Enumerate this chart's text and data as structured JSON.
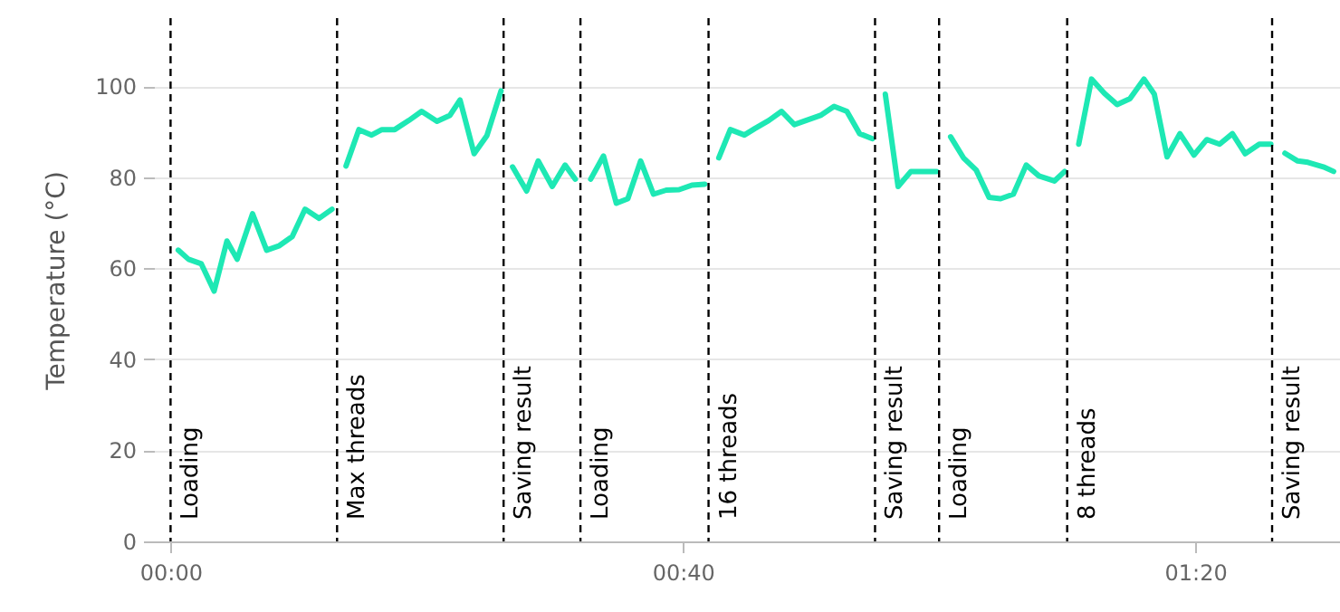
{
  "chart_data": {
    "type": "line",
    "ylabel": "Temperature (°C)",
    "x": [
      0.6,
      1.4,
      2.4,
      3.4,
      4.4,
      5.2,
      6.4,
      7.5,
      8.5,
      9.5,
      10.5,
      11.6,
      12.6,
      13,
      13.7,
      14.7,
      15.7,
      16.5,
      17.5,
      18.6,
      19.6,
      20.8,
      21.8,
      22.6,
      23.7,
      24.7,
      25.8,
      26,
      26.7,
      27.8,
      28.7,
      29.8,
      30.8,
      31.6,
      32,
      32.8,
      33.8,
      34.8,
      35.7,
      36.7,
      37.7,
      38.7,
      39.7,
      40.7,
      41.7,
      42,
      42.8,
      43.7,
      44.8,
      45.6,
      46.7,
      47.7,
      48.7,
      49.8,
      50.8,
      51.8,
      52.8,
      53.8,
      54.8,
      55,
      55.8,
      56.8,
      57.8,
      58.8,
      59.8,
      60,
      60.9,
      61.9,
      62.9,
      63.9,
      64.8,
      65.8,
      66.8,
      67.8,
      69,
      69.8,
      70,
      70.9,
      71.9,
      72.9,
      73.9,
      74.9,
      76,
      76.8,
      77.8,
      78.8,
      79.9,
      80.9,
      81.9,
      82.9,
      83.9,
      85,
      85.9,
      86,
      87,
      88,
      88.8,
      90,
      90.8
    ],
    "series": [
      {
        "color": "#1ee8b4",
        "values": [
          64,
          62,
          61,
          55,
          66,
          62,
          72,
          64,
          65,
          67,
          73,
          71,
          73,
          null,
          82.5,
          90.5,
          89.3,
          90.5,
          90.5,
          92.5,
          94.5,
          92.3,
          93.6,
          97,
          85.2,
          89.2,
          99,
          null,
          82.3,
          77,
          83.6,
          78,
          82.7,
          79.6,
          null,
          79.6,
          84.7,
          74.3,
          75.3,
          83.6,
          76.3,
          77.2,
          77.3,
          78.3,
          78.5,
          null,
          84.3,
          90.5,
          89.3,
          90.7,
          92.5,
          94.5,
          91.6,
          92.7,
          93.7,
          95.6,
          94.5,
          89.6,
          88.5,
          null,
          98.3,
          78,
          81.3,
          81.3,
          81.3,
          null,
          88.9,
          84.3,
          81.6,
          75.6,
          75.3,
          76.3,
          82.7,
          80.3,
          79.2,
          81.3,
          null,
          87.3,
          101.6,
          98.5,
          96,
          97.3,
          101.6,
          98.3,
          84.5,
          89.6,
          84.9,
          88.3,
          87.3,
          89.6,
          85.2,
          87.3,
          87.3,
          null,
          85.3,
          83.6,
          83.3,
          82.3,
          81.3
        ]
      }
    ],
    "xlim": [
      -1.3,
      91.3
    ],
    "xticks": [
      {
        "value": 0,
        "label": "00:00"
      },
      {
        "value": 40,
        "label": "00:40"
      },
      {
        "value": 80,
        "label": "01:20"
      }
    ],
    "ylim": [
      0,
      115
    ],
    "yticks": [
      0,
      20,
      40,
      60,
      80,
      100
    ],
    "grid": "y",
    "legend": false,
    "marker": "none",
    "line_style": "solid",
    "ref_lines": [
      {
        "axis": "x",
        "value": 0,
        "label": "Loading",
        "color": "#000000",
        "line_style": "dashed"
      },
      {
        "axis": "x",
        "value": 13,
        "label": "Max threads",
        "color": "#000000",
        "line_style": "dashed"
      },
      {
        "axis": "x",
        "value": 26,
        "label": "Saving result",
        "color": "#000000",
        "line_style": "dashed"
      },
      {
        "axis": "x",
        "value": 32,
        "label": "Loading",
        "color": "#000000",
        "line_style": "dashed"
      },
      {
        "axis": "x",
        "value": 42,
        "label": "16 threads",
        "color": "#000000",
        "line_style": "dashed"
      },
      {
        "axis": "x",
        "value": 55,
        "label": "Saving result",
        "color": "#000000",
        "line_style": "dashed"
      },
      {
        "axis": "x",
        "value": 60,
        "label": "Loading",
        "color": "#000000",
        "line_style": "dashed"
      },
      {
        "axis": "x",
        "value": 70,
        "label": "8 threads",
        "color": "#000000",
        "line_style": "dashed"
      },
      {
        "axis": "x",
        "value": 86,
        "label": "Saving result",
        "color": "#000000",
        "line_style": "dashed"
      }
    ]
  }
}
